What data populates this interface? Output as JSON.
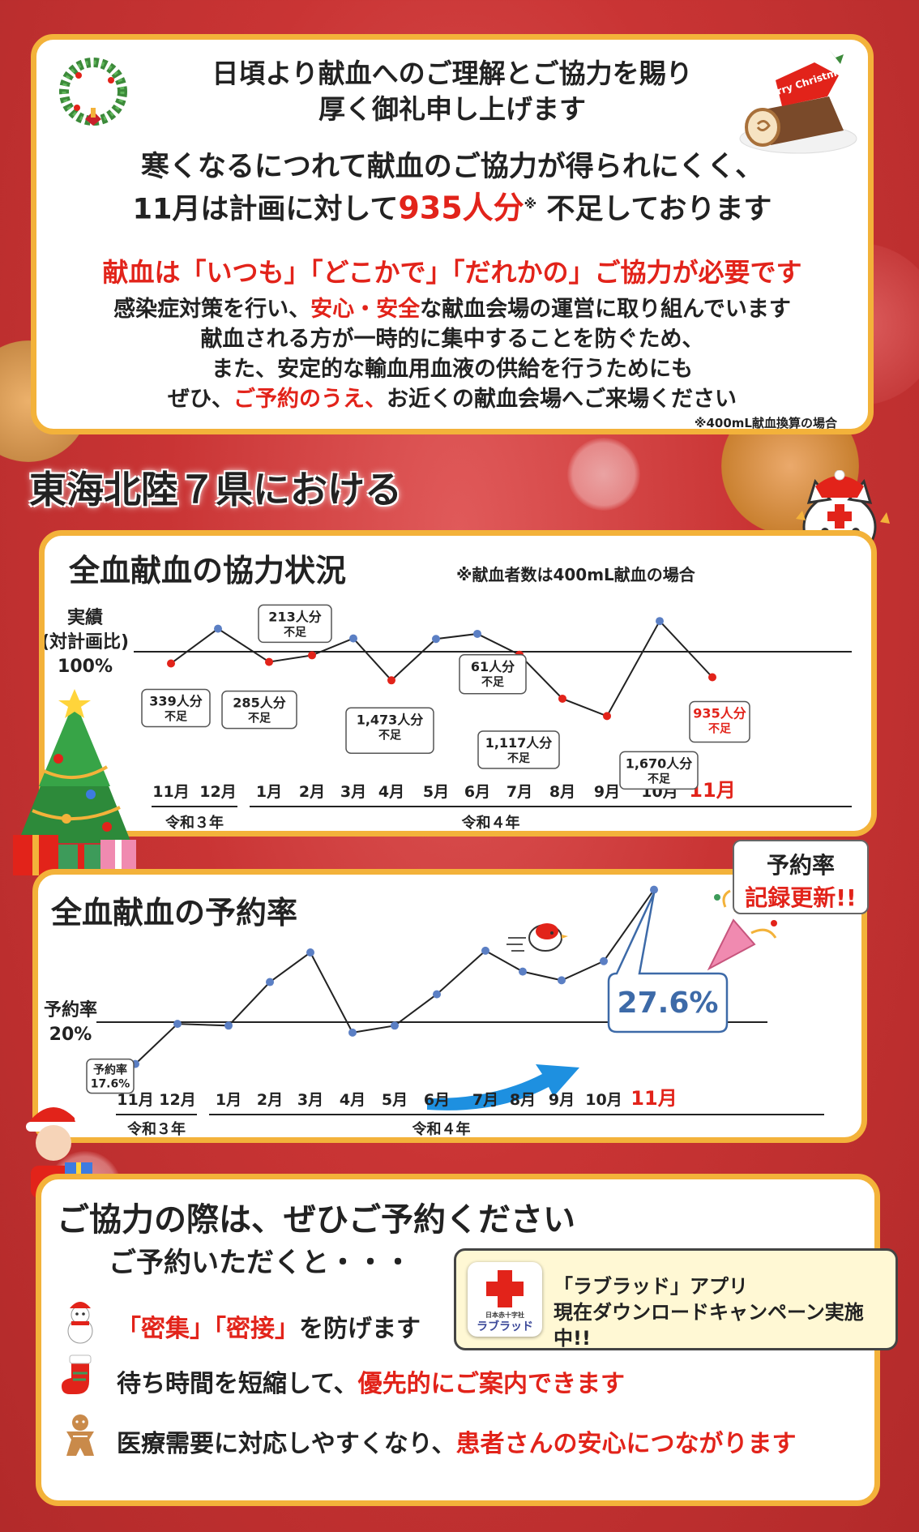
{
  "intro": {
    "line1": "日頃より献血へのご理解とご協力を賜り",
    "line2": "厚く御礼申し上げます"
  },
  "shortage": {
    "line1": "寒くなるにつれて献血のご協力が得られにくく、",
    "line2_a": "11月は計画に対して",
    "line2_num": "935人分",
    "line2_mark": "※",
    "line2_b": " 不足しております"
  },
  "always": "献血は「いつも」「どこかで」「だれかの」ご協力が必要です",
  "body": {
    "line1_a": "感染症対策を行い、",
    "line1_red": "安心・安全",
    "line1_b": "な献血会場の運営に取り組んでいます",
    "line2": "献血される方が一時的に集中することを防ぐため、",
    "line3": "また、安定的な輸血用血液の供給を行うためにも",
    "line4_a": "ぜひ、",
    "line4_red": "ご予約のうえ、",
    "line4_b": "お近くの献血会場へご来場ください"
  },
  "note": "※400mL献血換算の場合",
  "region": "東海北陸７県における",
  "decor": {
    "cake_text": "Merry Christmas!"
  },
  "chart_data": [
    {
      "type": "line",
      "title": "全血献血の協力状況",
      "note": "※献血者数は400mL献血の場合",
      "ylabel": [
        "実績",
        "(対計画比)",
        "100%"
      ],
      "categories": [
        "11月",
        "12月",
        "1月",
        "2月",
        "3月",
        "4月",
        "5月",
        "6月",
        "7月",
        "8月",
        "9月",
        "10月",
        "11月"
      ],
      "year_groups": [
        {
          "label": "令和３年",
          "from": 0,
          "to": 1
        },
        {
          "label": "令和４年",
          "from": 2,
          "to": 12
        }
      ],
      "reference": 100,
      "series": [
        {
          "values": [
            97.7,
            104.5,
            98.0,
            99.3,
            102.6,
            94.4,
            102.5,
            103.5,
            99.4,
            90.8,
            87.4,
            106.0,
            95.0
          ]
        }
      ],
      "annotations": [
        {
          "index": 0,
          "lines": [
            "339人分",
            "不足"
          ]
        },
        {
          "index": 2,
          "lines": [
            "285人分",
            "不足"
          ]
        },
        {
          "index": 3,
          "lines": [
            "213人分",
            "不足"
          ]
        },
        {
          "index": 5,
          "lines": [
            "1,473人分",
            "不足"
          ]
        },
        {
          "index": 8,
          "lines": [
            "61人分",
            "不足"
          ]
        },
        {
          "index": 9,
          "lines": [
            "1,117人分",
            "不足"
          ]
        },
        {
          "index": 10,
          "lines": [
            "1,670人分",
            "不足"
          ]
        },
        {
          "index": 12,
          "lines": [
            "935人分",
            "不足"
          ]
        }
      ]
    },
    {
      "type": "line",
      "title": "全血献血の予約率",
      "ylabel": [
        "予約率",
        "20%"
      ],
      "categories": [
        "11月",
        "12月",
        "1月",
        "2月",
        "3月",
        "4月",
        "5月",
        "6月",
        "7月",
        "8月",
        "9月",
        "10月",
        "11月"
      ],
      "year_groups": [
        {
          "label": "令和３年",
          "from": 0,
          "to": 1
        },
        {
          "label": "令和４年",
          "from": 2,
          "to": 12
        }
      ],
      "reference": 20,
      "series": [
        {
          "values": [
            17.6,
            19.9,
            19.8,
            22.3,
            24.0,
            19.4,
            19.8,
            21.6,
            24.1,
            22.9,
            22.4,
            23.5,
            27.6
          ]
        }
      ],
      "first_label": [
        "予約率",
        "17.6%"
      ],
      "last_label": "27.6%",
      "badge": [
        "予約率",
        "記録更新!!"
      ]
    }
  ],
  "reserve": {
    "title": "ご協力の際は、ぜひご予約ください",
    "sub": "ご予約いただくと・・・",
    "benefit1_red": "「密集」「密接」",
    "benefit1_b": "を防げます",
    "benefit2_a": "待ち時間を短縮して、",
    "benefit2_red": "優先的にご案内できます",
    "benefit3_a": "医療需要に対応しやすくなり、",
    "benefit3_red": "患者さんの安心につながります"
  },
  "app": {
    "logo_top": "日本赤十字社",
    "logo_name": "ラブラッド",
    "line1": "「ラブラッド」アプリ",
    "line2": "現在ダウンロードキャンペーン実施中!!"
  },
  "colors": {
    "accent_red": "#e2231a",
    "frame": "#f3b23a",
    "marker_blue": "#5b7fc4",
    "arrow_blue": "#1e90e0"
  }
}
